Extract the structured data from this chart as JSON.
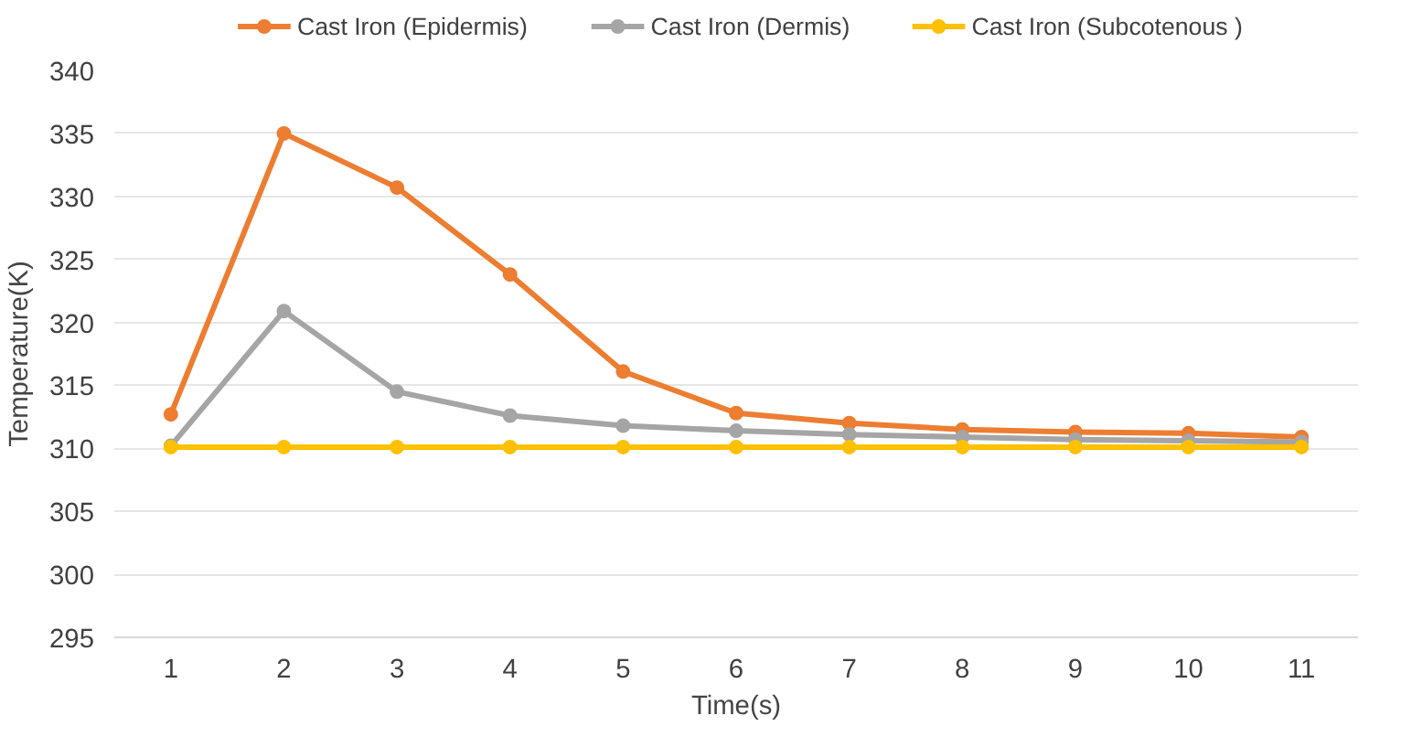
{
  "chart_data": {
    "type": "line",
    "xlabel": "Time(s)",
    "ylabel": "Temperature(K)",
    "categories": [
      "1",
      "2",
      "3",
      "4",
      "5",
      "6",
      "7",
      "8",
      "9",
      "10",
      "11"
    ],
    "series": [
      {
        "name": "Cast Iron (Epidermis)",
        "color": "#ed7d31",
        "values": [
          312.7,
          335.0,
          330.7,
          323.8,
          316.1,
          312.8,
          312.0,
          311.5,
          311.3,
          311.2,
          310.9
        ]
      },
      {
        "name": "Cast Iron (Dermis)",
        "color": "#a5a5a5",
        "values": [
          310.2,
          320.9,
          314.5,
          312.6,
          311.8,
          311.4,
          311.1,
          310.9,
          310.7,
          310.6,
          310.5
        ]
      },
      {
        "name": "Cast Iron (Subcotenous )",
        "color": "#ffc000",
        "values": [
          310.1,
          310.1,
          310.1,
          310.1,
          310.1,
          310.1,
          310.1,
          310.1,
          310.1,
          310.1,
          310.1
        ]
      }
    ],
    "ylim": [
      295,
      340
    ],
    "yticks": [
      295,
      300,
      305,
      310,
      315,
      320,
      325,
      330,
      335,
      340
    ],
    "grid": "y",
    "legend": "top",
    "marker": "circle",
    "line_style": "solid"
  }
}
